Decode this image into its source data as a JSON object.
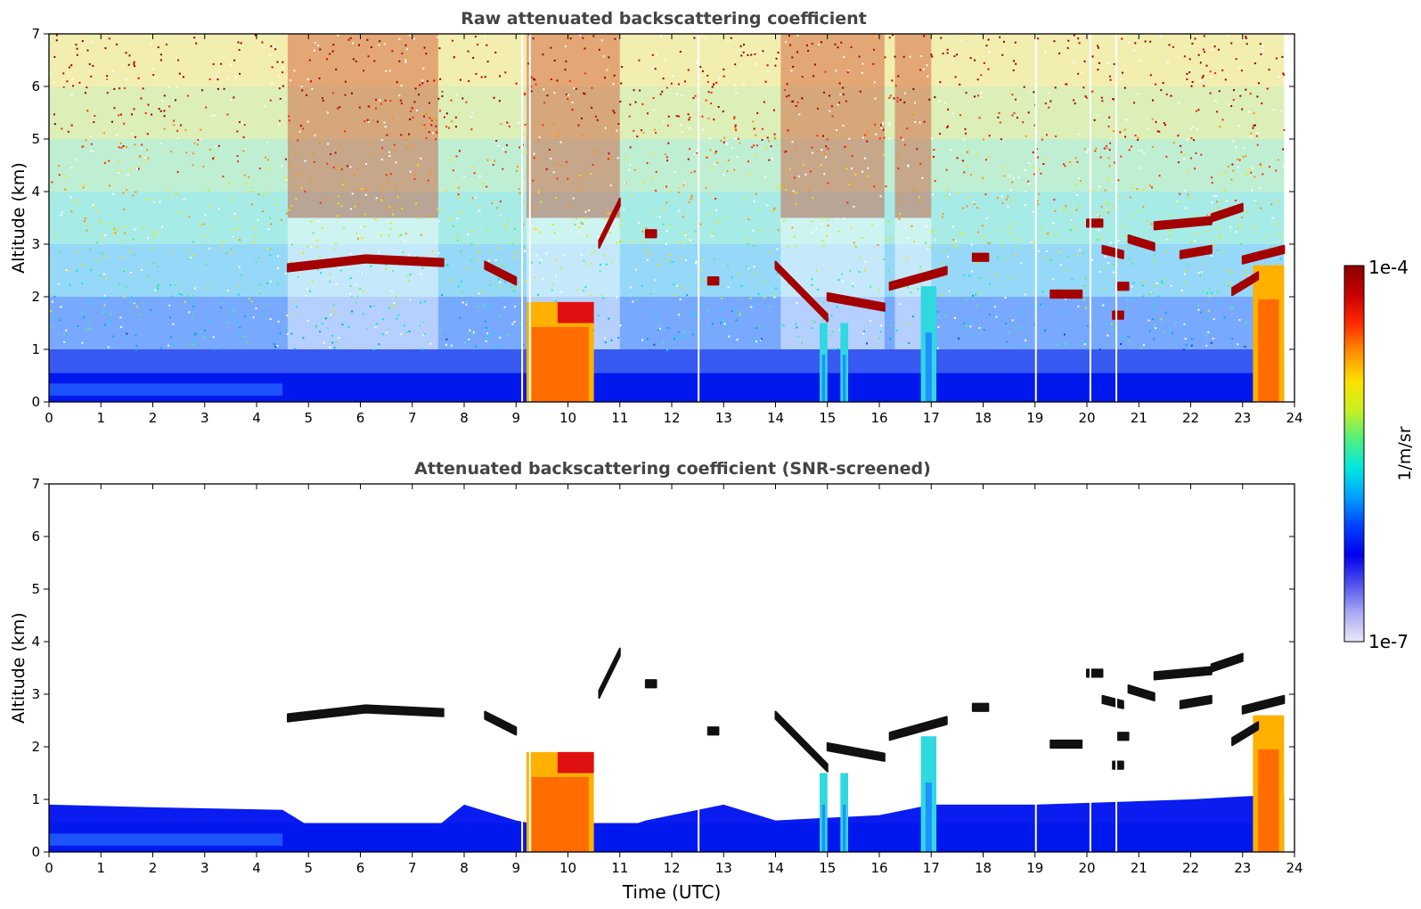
{
  "chart_data": [
    {
      "type": "heatmap",
      "id": "raw",
      "title": "Raw attenuated backscattering coefficient",
      "xlabel": "",
      "ylabel": "Altitude (km)",
      "xlim": [
        0,
        24
      ],
      "ylim": [
        0,
        7
      ],
      "x_ticks": [
        "0",
        "1",
        "2",
        "3",
        "4",
        "5",
        "6",
        "7",
        "8",
        "9",
        "10",
        "11",
        "12",
        "13",
        "14",
        "15",
        "16",
        "17",
        "18",
        "19",
        "20",
        "21",
        "22",
        "23",
        "24"
      ],
      "y_ticks": [
        "0",
        "1",
        "2",
        "3",
        "4",
        "5",
        "6",
        "7"
      ],
      "data_end_time": 23.8,
      "boundary_layer_top_km": 0.55,
      "noisy_background": true,
      "data_gaps_utc": [
        9.1,
        9.25,
        12.5,
        19.0,
        20.05,
        20.55
      ],
      "high_noise_periods_utc": [
        [
          4.6,
          7.5
        ],
        [
          9.2,
          11.0
        ],
        [
          14.1,
          16.1
        ],
        [
          16.3,
          17.0
        ]
      ],
      "cloud_layers": [
        {
          "t0": 4.6,
          "t1": 7.6,
          "alt_km": [
            2.55,
            2.72,
            2.65
          ]
        },
        {
          "t0": 8.4,
          "t1": 9.0,
          "alt_km": [
            2.6,
            2.3
          ]
        },
        {
          "t0": 10.6,
          "t1": 11.0,
          "alt_km": [
            3.0,
            3.8
          ]
        },
        {
          "t0": 11.5,
          "t1": 11.7,
          "alt_km": [
            3.2,
            3.2
          ]
        },
        {
          "t0": 12.7,
          "t1": 12.9,
          "alt_km": [
            2.3,
            2.3
          ]
        },
        {
          "t0": 14.0,
          "t1": 15.0,
          "alt_km": [
            2.6,
            1.6
          ]
        },
        {
          "t0": 15.0,
          "t1": 16.1,
          "alt_km": [
            2.0,
            1.8
          ]
        },
        {
          "t0": 16.2,
          "t1": 17.3,
          "alt_km": [
            2.2,
            2.5
          ]
        },
        {
          "t0": 17.8,
          "t1": 18.1,
          "alt_km": [
            2.75,
            2.75
          ]
        },
        {
          "t0": 19.3,
          "t1": 19.9,
          "alt_km": [
            2.05,
            2.05
          ]
        },
        {
          "t0": 20.0,
          "t1": 20.3,
          "alt_km": [
            3.4,
            3.4
          ]
        },
        {
          "t0": 20.3,
          "t1": 20.7,
          "alt_km": [
            2.9,
            2.8
          ]
        },
        {
          "t0": 20.5,
          "t1": 20.7,
          "alt_km": [
            1.65,
            1.65
          ]
        },
        {
          "t0": 20.6,
          "t1": 20.8,
          "alt_km": [
            2.2,
            2.2
          ]
        },
        {
          "t0": 20.8,
          "t1": 21.3,
          "alt_km": [
            3.1,
            2.95
          ]
        },
        {
          "t0": 21.3,
          "t1": 22.4,
          "alt_km": [
            3.35,
            3.45
          ]
        },
        {
          "t0": 21.8,
          "t1": 22.4,
          "alt_km": [
            2.8,
            2.9
          ]
        },
        {
          "t0": 22.4,
          "t1": 23.0,
          "alt_km": [
            3.5,
            3.7
          ]
        },
        {
          "t0": 22.8,
          "t1": 23.3,
          "alt_km": [
            2.1,
            2.4
          ]
        },
        {
          "t0": 23.0,
          "t1": 23.8,
          "alt_km": [
            2.7,
            2.9
          ]
        }
      ],
      "precipitation_plumes": [
        {
          "t0": 9.2,
          "t1": 10.5,
          "top_km": 1.9
        },
        {
          "t0": 14.85,
          "t1": 15.0,
          "top_km": 1.5
        },
        {
          "t0": 15.25,
          "t1": 15.4,
          "top_km": 1.5
        },
        {
          "t0": 16.8,
          "t1": 17.1,
          "top_km": 2.2
        },
        {
          "t0": 23.2,
          "t1": 23.8,
          "top_km": 2.6
        }
      ]
    },
    {
      "type": "heatmap",
      "id": "screened",
      "title": "Attenuated backscattering coefficient (SNR-screened)",
      "xlabel": "Time (UTC)",
      "ylabel": "Altitude (km)",
      "xlim": [
        0,
        24
      ],
      "ylim": [
        0,
        7
      ],
      "x_ticks": [
        "0",
        "1",
        "2",
        "3",
        "4",
        "5",
        "6",
        "7",
        "8",
        "9",
        "10",
        "11",
        "12",
        "13",
        "14",
        "15",
        "16",
        "17",
        "18",
        "19",
        "20",
        "21",
        "22",
        "23",
        "24"
      ],
      "y_ticks": [
        "0",
        "1",
        "2",
        "3",
        "4",
        "5",
        "6",
        "7"
      ],
      "data_end_time": 23.8,
      "boundary_layer_top_km": 0.55,
      "noisy_background": false,
      "valid_data_top_km": [
        {
          "t": 0,
          "alt": 0.9
        },
        {
          "t": 2,
          "alt": 0.85
        },
        {
          "t": 4.5,
          "alt": 0.8
        },
        {
          "t": 5,
          "alt": 0.5
        },
        {
          "t": 7.5,
          "alt": 0.5
        },
        {
          "t": 8,
          "alt": 0.9
        },
        {
          "t": 9,
          "alt": 0.6
        },
        {
          "t": 10.6,
          "alt": 0.3
        },
        {
          "t": 11.5,
          "alt": 0.6
        },
        {
          "t": 13,
          "alt": 0.9
        },
        {
          "t": 14,
          "alt": 0.6
        },
        {
          "t": 16,
          "alt": 0.7
        },
        {
          "t": 17,
          "alt": 0.9
        },
        {
          "t": 19,
          "alt": 0.9
        },
        {
          "t": 22,
          "alt": 1.0
        },
        {
          "t": 23.8,
          "alt": 1.1
        }
      ],
      "data_gaps_utc": [
        9.1,
        9.25,
        12.5,
        19.0,
        20.05,
        20.55
      ],
      "high_noise_periods_utc": [],
      "cloud_layers": [
        {
          "t0": 4.6,
          "t1": 7.6,
          "alt_km": [
            2.55,
            2.72,
            2.65
          ]
        },
        {
          "t0": 8.4,
          "t1": 9.0,
          "alt_km": [
            2.6,
            2.3
          ]
        },
        {
          "t0": 10.6,
          "t1": 11.0,
          "alt_km": [
            3.0,
            3.8
          ]
        },
        {
          "t0": 11.5,
          "t1": 11.7,
          "alt_km": [
            3.2,
            3.2
          ]
        },
        {
          "t0": 12.7,
          "t1": 12.9,
          "alt_km": [
            2.3,
            2.3
          ]
        },
        {
          "t0": 14.0,
          "t1": 15.0,
          "alt_km": [
            2.6,
            1.6
          ]
        },
        {
          "t0": 15.0,
          "t1": 16.1,
          "alt_km": [
            2.0,
            1.8
          ]
        },
        {
          "t0": 16.2,
          "t1": 17.3,
          "alt_km": [
            2.2,
            2.5
          ]
        },
        {
          "t0": 17.8,
          "t1": 18.1,
          "alt_km": [
            2.75,
            2.75
          ]
        },
        {
          "t0": 19.3,
          "t1": 19.9,
          "alt_km": [
            2.05,
            2.05
          ]
        },
        {
          "t0": 20.0,
          "t1": 20.3,
          "alt_km": [
            3.4,
            3.4
          ]
        },
        {
          "t0": 20.3,
          "t1": 20.7,
          "alt_km": [
            2.9,
            2.8
          ]
        },
        {
          "t0": 20.5,
          "t1": 20.7,
          "alt_km": [
            1.65,
            1.65
          ]
        },
        {
          "t0": 20.6,
          "t1": 20.8,
          "alt_km": [
            2.2,
            2.2
          ]
        },
        {
          "t0": 20.8,
          "t1": 21.3,
          "alt_km": [
            3.1,
            2.95
          ]
        },
        {
          "t0": 21.3,
          "t1": 22.4,
          "alt_km": [
            3.35,
            3.45
          ]
        },
        {
          "t0": 21.8,
          "t1": 22.4,
          "alt_km": [
            2.8,
            2.9
          ]
        },
        {
          "t0": 22.4,
          "t1": 23.0,
          "alt_km": [
            3.5,
            3.7
          ]
        },
        {
          "t0": 22.8,
          "t1": 23.3,
          "alt_km": [
            2.1,
            2.4
          ]
        },
        {
          "t0": 23.0,
          "t1": 23.8,
          "alt_km": [
            2.7,
            2.9
          ]
        }
      ],
      "precipitation_plumes": [
        {
          "t0": 9.2,
          "t1": 10.5,
          "top_km": 1.9
        },
        {
          "t0": 14.85,
          "t1": 15.0,
          "top_km": 1.5
        },
        {
          "t0": 15.25,
          "t1": 15.4,
          "top_km": 1.5
        },
        {
          "t0": 16.8,
          "t1": 17.1,
          "top_km": 2.2
        },
        {
          "t0": 23.2,
          "t1": 23.8,
          "top_km": 2.6
        }
      ]
    }
  ],
  "colorbar": {
    "label": "1/m/sr",
    "max_label": "1e-4",
    "min_label": "1e-7",
    "scale": "log",
    "colors": [
      "#e9e9f8",
      "#a9a9f2",
      "#5050ef",
      "#0000ee",
      "#0040ff",
      "#00a0ff",
      "#00e8e0",
      "#50f080",
      "#c8f020",
      "#ffe000",
      "#ff9000",
      "#ff2800",
      "#c80000",
      "#8b0000"
    ]
  }
}
